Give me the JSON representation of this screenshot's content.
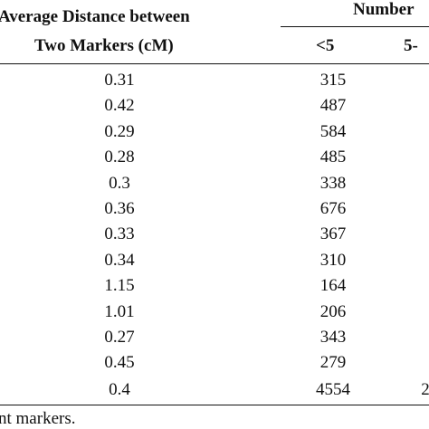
{
  "table": {
    "headers": {
      "avg_line1": "Average Distance between",
      "avg_line2": "Two Markers (cM)",
      "number": "Number",
      "sub1": "<5",
      "sub2": "5-"
    },
    "rows": [
      {
        "avg": "0.31",
        "lt5": "315"
      },
      {
        "avg": "0.42",
        "lt5": "487"
      },
      {
        "avg": "0.29",
        "lt5": "584"
      },
      {
        "avg": "0.28",
        "lt5": "485"
      },
      {
        "avg": "0.3",
        "lt5": "338"
      },
      {
        "avg": "0.36",
        "lt5": "676"
      },
      {
        "avg": "0.33",
        "lt5": "367"
      },
      {
        "avg": "0.34",
        "lt5": "310"
      },
      {
        "avg": "1.15",
        "lt5": "164"
      },
      {
        "avg": "1.01",
        "lt5": "206"
      },
      {
        "avg": "0.27",
        "lt5": "343"
      },
      {
        "avg": "0.45",
        "lt5": "279"
      }
    ],
    "total": {
      "avg": "0.4",
      "lt5": "4554",
      "partial": "2"
    }
  },
  "footnote": "nt markers."
}
